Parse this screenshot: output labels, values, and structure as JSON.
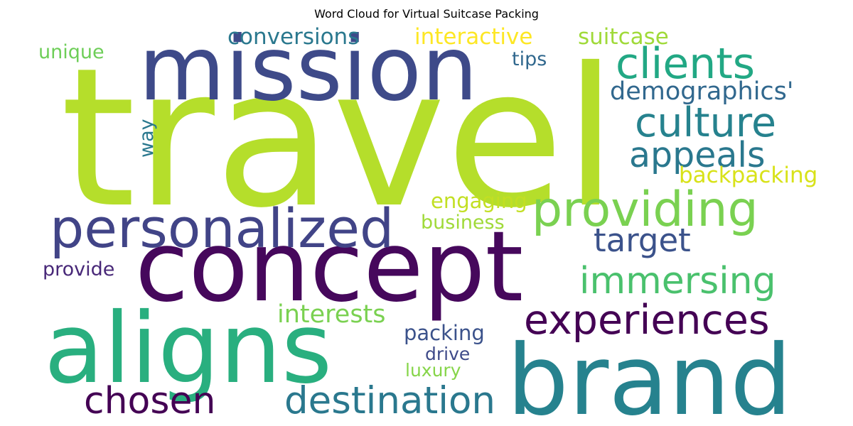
{
  "chart_data": {
    "type": "wordcloud",
    "title": "Word Cloud for Virtual Suitcase Packing",
    "words": [
      {
        "text": "travel",
        "weight": 1.0,
        "color": "#b5de2b"
      },
      {
        "text": "mission",
        "weight": 0.6,
        "color": "#3e4a89"
      },
      {
        "text": "concept",
        "weight": 0.66,
        "color": "#46085c"
      },
      {
        "text": "aligns",
        "weight": 0.66,
        "color": "#29af7f"
      },
      {
        "text": "brand",
        "weight": 0.66,
        "color": "#26828e"
      },
      {
        "text": "personalized",
        "weight": 0.37,
        "color": "#414487"
      },
      {
        "text": "providing",
        "weight": 0.33,
        "color": "#7ad151"
      },
      {
        "text": "clients",
        "weight": 0.29,
        "color": "#22a884"
      },
      {
        "text": "culture",
        "weight": 0.28,
        "color": "#26828e"
      },
      {
        "text": "experiences",
        "weight": 0.28,
        "color": "#440154"
      },
      {
        "text": "destination",
        "weight": 0.26,
        "color": "#2a788e"
      },
      {
        "text": "chosen",
        "weight": 0.25,
        "color": "#440154"
      },
      {
        "text": "immersing",
        "weight": 0.25,
        "color": "#4ac16d"
      },
      {
        "text": "appeals",
        "weight": 0.24,
        "color": "#2a788e"
      },
      {
        "text": "target",
        "weight": 0.22,
        "color": "#3b528b"
      },
      {
        "text": "demographics'",
        "weight": 0.17,
        "color": "#31688e"
      },
      {
        "text": "interests",
        "weight": 0.17,
        "color": "#7ad151"
      },
      {
        "text": "conversions",
        "weight": 0.15,
        "color": "#2a788e"
      },
      {
        "text": "interactive",
        "weight": 0.15,
        "color": "#fde725"
      },
      {
        "text": "suitcase",
        "weight": 0.15,
        "color": "#a0da39"
      },
      {
        "text": "backpacking",
        "weight": 0.15,
        "color": "#d8e219"
      },
      {
        "text": "engaging",
        "weight": 0.14,
        "color": "#c2df23"
      },
      {
        "text": "packing",
        "weight": 0.14,
        "color": "#3b528b"
      },
      {
        "text": "unique",
        "weight": 0.13,
        "color": "#6ece58"
      },
      {
        "text": "tips",
        "weight": 0.13,
        "color": "#31688e"
      },
      {
        "text": "business",
        "weight": 0.13,
        "color": "#a0da39"
      },
      {
        "text": "provide",
        "weight": 0.13,
        "color": "#482878"
      },
      {
        "text": "way",
        "weight": 0.13,
        "color": "#2a788e"
      },
      {
        "text": "drive",
        "weight": 0.12,
        "color": "#3e4a89"
      },
      {
        "text": "luxury",
        "weight": 0.12,
        "color": "#86d549"
      }
    ]
  }
}
